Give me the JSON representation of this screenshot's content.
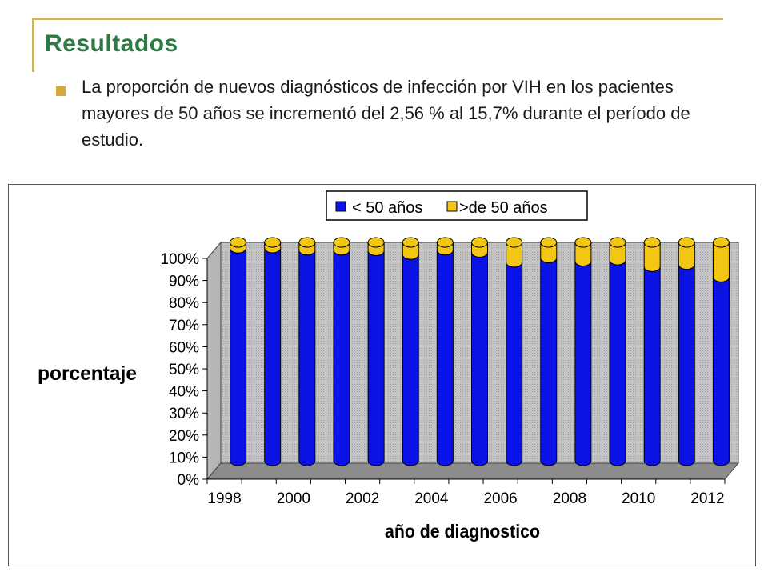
{
  "slide": {
    "title": "Resultados",
    "bullet": "La proporción de nuevos diagnósticos de infección por VIH en los pacientes mayores de 50 años se incrementó del 2,56 % al 15,7% durante el período de estudio."
  },
  "colors": {
    "under50": "#0a12e6",
    "over50": "#f2c612",
    "title": "#2e7a43",
    "accent": "#c9b26a"
  },
  "chart_data": {
    "type": "bar",
    "stacked": "percent",
    "ylabel": "porcentaje",
    "xlabel": "año de diagnostico",
    "ylim": [
      0,
      100
    ],
    "y_ticks": [
      "0%",
      "10%",
      "20%",
      "30%",
      "40%",
      "50%",
      "60%",
      "70%",
      "80%",
      "90%",
      "100%"
    ],
    "categories": [
      "1998",
      "1999",
      "2000",
      "2001",
      "2002",
      "2003",
      "2004",
      "2005",
      "2006",
      "2007",
      "2008",
      "2009",
      "2010",
      "2011",
      "2012"
    ],
    "x_tick_labels": [
      "1998",
      "2000",
      "2002",
      "2004",
      "2006",
      "2008",
      "2010",
      "2012"
    ],
    "series": [
      {
        "name": "< 50 años",
        "values": [
          97.4,
          97.5,
          96.5,
          96.5,
          96.2,
          94.5,
          96.5,
          95.5,
          91,
          93,
          91.5,
          92,
          89,
          90,
          84.3
        ]
      },
      {
        "name": ">de 50 años",
        "values": [
          2.6,
          2.5,
          3.5,
          3.5,
          3.8,
          5.5,
          3.5,
          4.5,
          9,
          7,
          8.5,
          8,
          11,
          10,
          15.7
        ]
      }
    ],
    "legend_position": "top",
    "grid": false,
    "render": "3d-cylinder"
  }
}
